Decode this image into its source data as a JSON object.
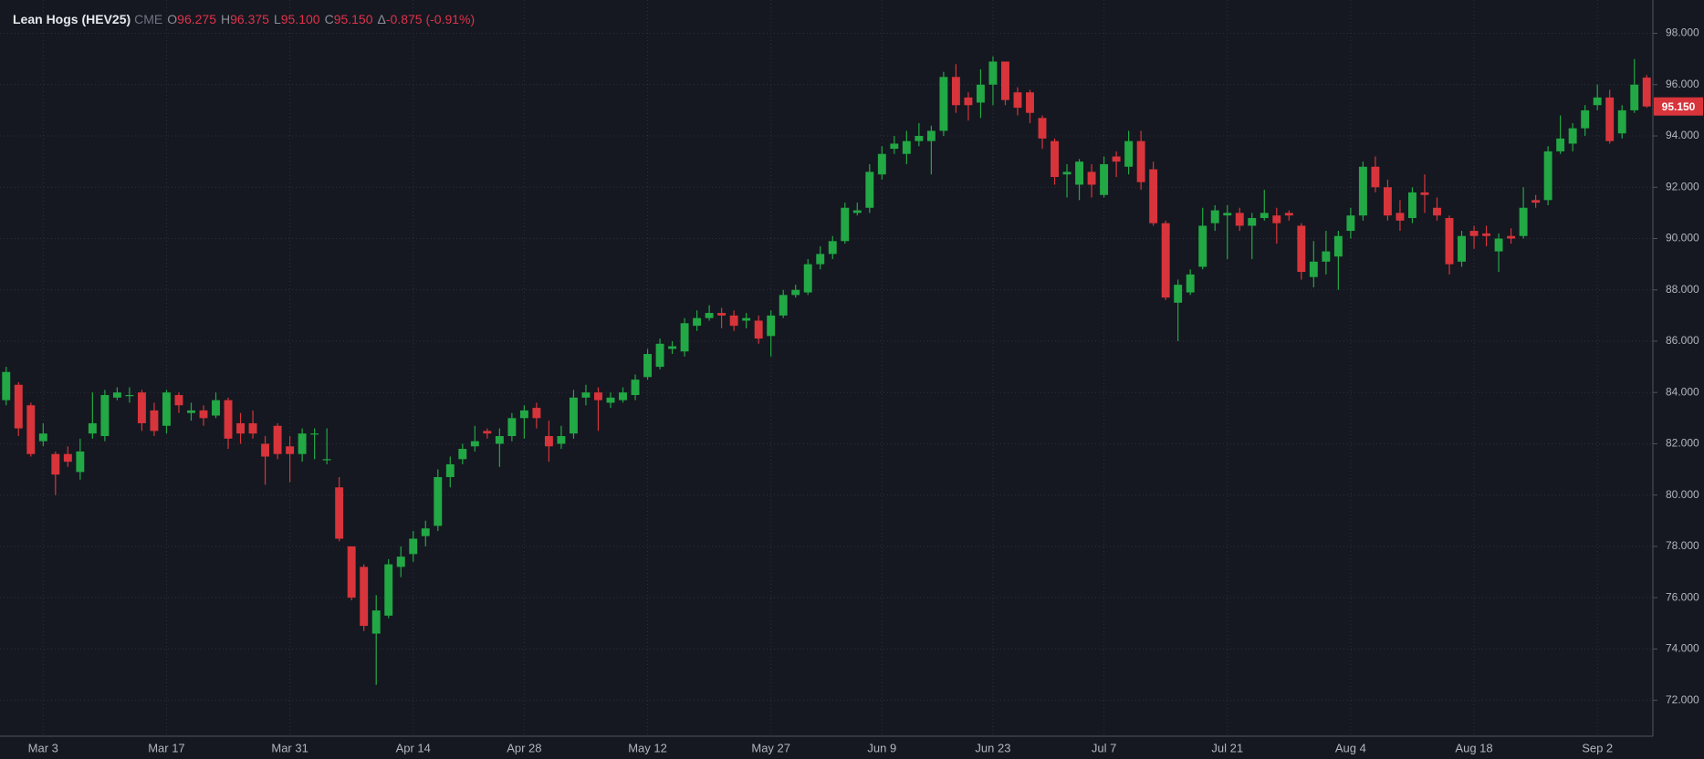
{
  "header": {
    "symbol": "Lean Hogs (HEV25)",
    "exchange": "CME",
    "fields": [
      {
        "label": "O",
        "value": "96.275"
      },
      {
        "label": "H",
        "value": "96.375"
      },
      {
        "label": "L",
        "value": "95.100"
      },
      {
        "label": "C",
        "value": "95.150"
      },
      {
        "label": "Δ",
        "value": "-0.875 (-0.91%)"
      }
    ]
  },
  "chart_data": {
    "type": "candlestick",
    "categories": [
      null,
      null,
      null,
      "Mar 3",
      null,
      null,
      null,
      null,
      null,
      null,
      null,
      null,
      null,
      "Mar 17",
      null,
      null,
      null,
      null,
      null,
      null,
      null,
      null,
      null,
      "Mar 31",
      null,
      null,
      null,
      null,
      null,
      null,
      null,
      null,
      null,
      "Apr 14",
      null,
      null,
      null,
      null,
      null,
      null,
      null,
      null,
      "Apr 28",
      null,
      null,
      null,
      null,
      null,
      null,
      null,
      null,
      null,
      "May 12",
      null,
      null,
      null,
      null,
      null,
      null,
      null,
      null,
      null,
      "May 27",
      null,
      null,
      null,
      null,
      null,
      null,
      null,
      null,
      "Jun 9",
      null,
      null,
      null,
      null,
      null,
      null,
      null,
      null,
      "Jun 23",
      null,
      null,
      null,
      null,
      null,
      null,
      null,
      null,
      "Jul 7",
      null,
      null,
      null,
      null,
      null,
      null,
      null,
      null,
      null,
      "Jul 21",
      null,
      null,
      null,
      null,
      null,
      null,
      null,
      null,
      null,
      "Aug 4",
      null,
      null,
      null,
      null,
      null,
      null,
      null,
      null,
      null,
      "Aug 18",
      null,
      null,
      null,
      null,
      null,
      null,
      null,
      null,
      null,
      "Sep 2",
      null,
      null,
      null,
      null
    ],
    "open": [
      83.7,
      84.3,
      83.5,
      82.1,
      81.6,
      81.6,
      80.9,
      82.4,
      82.3,
      83.8,
      83.9,
      84.0,
      83.3,
      82.7,
      83.9,
      83.2,
      83.3,
      83.1,
      83.7,
      82.8,
      82.8,
      82.0,
      82.7,
      81.9,
      81.6,
      82.4,
      81.4,
      80.3,
      78.0,
      77.2,
      74.6,
      75.3,
      77.2,
      77.7,
      78.4,
      78.8,
      80.7,
      81.4,
      81.9,
      82.5,
      82.0,
      82.3,
      83.0,
      83.4,
      82.3,
      82.0,
      82.4,
      83.8,
      84.0,
      83.6,
      83.7,
      83.9,
      84.6,
      85.0,
      85.7,
      85.6,
      86.6,
      86.9,
      87.1,
      87.0,
      86.8,
      86.8,
      86.2,
      87.0,
      87.8,
      87.9,
      89.0,
      89.4,
      89.9,
      91.0,
      91.2,
      92.5,
      93.5,
      93.3,
      93.8,
      93.8,
      94.2,
      96.3,
      95.5,
      95.3,
      96.0,
      96.9,
      95.7,
      95.7,
      94.7,
      93.8,
      92.5,
      92.1,
      92.6,
      91.7,
      93.2,
      92.8,
      93.8,
      92.7,
      90.6,
      87.5,
      87.9,
      88.9,
      90.6,
      90.9,
      91.0,
      90.5,
      90.8,
      90.9,
      91.0,
      90.5,
      88.5,
      89.1,
      89.3,
      90.3,
      90.9,
      92.8,
      92.0,
      91.0,
      90.8,
      91.8,
      91.2,
      90.8,
      89.1,
      90.3,
      90.2,
      89.5,
      90.1,
      90.1,
      91.5,
      91.5,
      93.4,
      93.7,
      94.3,
      95.2,
      95.5,
      94.1,
      95.0,
      96.275
    ],
    "high": [
      85.0,
      84.4,
      83.6,
      82.8,
      81.7,
      81.9,
      82.2,
      84.0,
      84.1,
      84.2,
      84.2,
      84.1,
      83.6,
      84.1,
      84.0,
      83.6,
      83.5,
      84.0,
      83.8,
      83.2,
      83.3,
      82.3,
      82.8,
      82.3,
      82.6,
      82.6,
      82.6,
      80.7,
      78.0,
      77.3,
      76.1,
      77.5,
      78.0,
      78.6,
      79.0,
      81.0,
      81.5,
      82.0,
      82.7,
      82.6,
      82.6,
      83.2,
      83.5,
      83.6,
      82.9,
      82.7,
      84.1,
      84.3,
      84.2,
      84.0,
      84.2,
      84.7,
      85.7,
      86.1,
      86.0,
      86.9,
      87.2,
      87.4,
      87.3,
      87.2,
      87.1,
      87.0,
      87.2,
      88.0,
      88.2,
      89.2,
      89.7,
      90.1,
      91.4,
      91.4,
      92.9,
      93.6,
      94.0,
      94.2,
      94.5,
      94.4,
      96.5,
      96.8,
      95.7,
      96.6,
      97.1,
      96.9,
      95.9,
      95.8,
      94.8,
      93.9,
      92.9,
      93.1,
      92.9,
      93.2,
      93.4,
      94.2,
      94.2,
      93.0,
      90.7,
      88.4,
      88.8,
      91.2,
      91.3,
      91.3,
      91.2,
      91.0,
      91.9,
      91.2,
      91.1,
      90.6,
      89.9,
      90.3,
      90.3,
      91.2,
      93.0,
      93.2,
      92.3,
      91.5,
      92.0,
      92.5,
      91.6,
      90.9,
      90.3,
      90.5,
      90.5,
      90.2,
      90.4,
      92.0,
      91.7,
      93.6,
      94.8,
      94.5,
      95.2,
      96.0,
      95.8,
      95.2,
      97.0,
      96.375
    ],
    "low": [
      83.5,
      82.3,
      81.5,
      81.9,
      80.0,
      81.1,
      80.6,
      82.2,
      82.1,
      83.7,
      83.6,
      82.5,
      82.3,
      82.4,
      83.2,
      82.9,
      82.7,
      83.0,
      81.8,
      82.0,
      82.2,
      80.4,
      81.4,
      80.5,
      81.3,
      81.4,
      81.2,
      78.2,
      75.9,
      74.7,
      72.6,
      75.2,
      76.8,
      77.4,
      78.0,
      78.6,
      80.3,
      81.2,
      81.7,
      82.2,
      81.1,
      82.1,
      82.2,
      82.6,
      81.3,
      81.8,
      82.2,
      83.5,
      82.5,
      83.4,
      83.6,
      83.7,
      84.5,
      84.9,
      85.5,
      85.4,
      86.4,
      86.8,
      86.5,
      86.4,
      86.5,
      85.9,
      85.4,
      86.9,
      87.7,
      87.8,
      88.8,
      89.2,
      89.8,
      90.9,
      91.0,
      92.3,
      93.3,
      92.9,
      93.6,
      92.5,
      94.0,
      94.9,
      94.6,
      94.7,
      95.2,
      95.2,
      94.8,
      94.5,
      93.5,
      92.1,
      91.6,
      91.5,
      91.6,
      91.6,
      92.4,
      92.5,
      91.9,
      90.5,
      87.6,
      86.0,
      87.8,
      88.8,
      90.3,
      89.2,
      90.3,
      89.2,
      90.7,
      89.8,
      90.7,
      88.4,
      88.1,
      88.6,
      88.0,
      90.0,
      90.7,
      91.8,
      90.7,
      90.3,
      90.6,
      91.0,
      90.7,
      88.6,
      88.9,
      89.6,
      89.7,
      88.7,
      89.8,
      90.0,
      91.2,
      91.3,
      93.3,
      93.4,
      94.0,
      95.0,
      93.7,
      93.9,
      94.9,
      95.1
    ],
    "close": [
      84.8,
      82.6,
      81.6,
      82.4,
      80.8,
      81.3,
      81.7,
      82.8,
      83.9,
      84.0,
      83.9,
      82.8,
      82.5,
      84.0,
      83.5,
      83.3,
      83.0,
      83.7,
      82.2,
      82.4,
      82.4,
      81.5,
      81.6,
      81.6,
      82.4,
      82.4,
      81.4,
      78.3,
      76.0,
      74.9,
      75.5,
      77.3,
      77.6,
      78.3,
      78.7,
      80.7,
      81.2,
      81.8,
      82.1,
      82.4,
      82.3,
      83.0,
      83.3,
      83.0,
      81.9,
      82.3,
      83.8,
      84.0,
      83.7,
      83.8,
      84.0,
      84.5,
      85.5,
      85.9,
      85.8,
      86.7,
      86.9,
      87.1,
      87.0,
      86.6,
      86.9,
      86.1,
      87.0,
      87.8,
      88.0,
      89.0,
      89.4,
      89.9,
      91.2,
      91.1,
      92.6,
      93.3,
      93.7,
      93.8,
      94.0,
      94.2,
      96.3,
      95.2,
      95.2,
      96.0,
      96.9,
      95.4,
      95.1,
      94.9,
      93.9,
      92.4,
      92.6,
      93.0,
      92.1,
      92.9,
      93.0,
      93.8,
      92.2,
      90.6,
      87.7,
      88.2,
      88.6,
      90.5,
      91.1,
      91.0,
      90.5,
      90.8,
      91.0,
      90.6,
      90.9,
      88.7,
      89.1,
      89.5,
      90.1,
      90.9,
      92.8,
      92.0,
      90.9,
      90.7,
      91.8,
      91.7,
      90.9,
      89.0,
      90.1,
      90.1,
      90.1,
      90.0,
      90.0,
      91.2,
      91.4,
      93.4,
      93.9,
      94.3,
      95.0,
      95.5,
      93.8,
      95.0,
      96.0,
      95.15
    ],
    "up_color": "#22a845",
    "down_color": "#d8343b",
    "ylim": [
      70.6,
      99.3
    ],
    "yticks": [
      {
        "value": 72,
        "label": "72.000"
      },
      {
        "value": 74,
        "label": "74.000"
      },
      {
        "value": 76,
        "label": "76.000"
      },
      {
        "value": 78,
        "label": "78.000"
      },
      {
        "value": 80,
        "label": "80.000"
      },
      {
        "value": 82,
        "label": "82.000"
      },
      {
        "value": 84,
        "label": "84.000"
      },
      {
        "value": 86,
        "label": "86.000"
      },
      {
        "value": 88,
        "label": "88.000"
      },
      {
        "value": 90,
        "label": "90.000"
      },
      {
        "value": 92,
        "label": "92.000"
      },
      {
        "value": 94,
        "label": "94.000"
      },
      {
        "value": 96,
        "label": "96.000"
      },
      {
        "value": 98,
        "label": "98.000"
      }
    ],
    "last_price": {
      "value": 95.15,
      "label": "95.150"
    },
    "grid": true
  }
}
